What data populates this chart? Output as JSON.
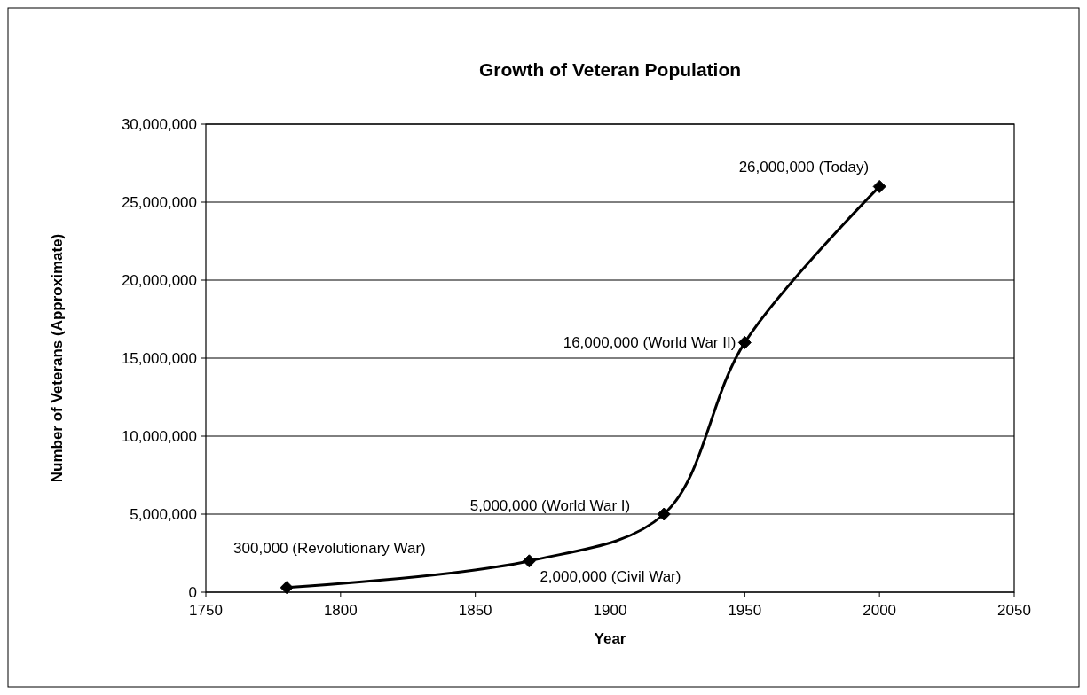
{
  "chart_data": {
    "type": "line",
    "title": "Growth of Veteran Population",
    "xlabel": "Year",
    "ylabel": "Number of Veterans (Approximate)",
    "x": [
      1780,
      1870,
      1920,
      1950,
      2000
    ],
    "series": [
      {
        "color": "#000000",
        "values": [
          300000,
          2000000,
          5000000,
          16000000,
          26000000
        ]
      }
    ],
    "xlim": [
      1750,
      2050
    ],
    "xticks": [
      1750,
      1800,
      1850,
      1900,
      1950,
      2000,
      2050
    ],
    "ylim": [
      0,
      30000000
    ],
    "yticks": [
      {
        "value": 0,
        "label": "0"
      },
      {
        "value": 5000000,
        "label": "5,000,000"
      },
      {
        "value": 10000000,
        "label": "10,000,000"
      },
      {
        "value": 15000000,
        "label": "15,000,000"
      },
      {
        "value": 20000000,
        "label": "20,000,000"
      },
      {
        "value": 25000000,
        "label": "25,000,000"
      },
      {
        "value": 30000000,
        "label": "30,000,000"
      }
    ],
    "grid": "y",
    "marker": "diamond",
    "line_style": "solid",
    "annotations": [
      {
        "text": "300,000 (Revolutionary War)",
        "x": 1780,
        "y": 300000
      },
      {
        "text": "2,000,000 (Civil War)",
        "x": 1870,
        "y": 2000000
      },
      {
        "text": "5,000,000 (World War I)",
        "x": 1920,
        "y": 5000000
      },
      {
        "text": "16,000,000 (World War II)",
        "x": 1950,
        "y": 16000000
      },
      {
        "text": "26,000,000 (Today)",
        "x": 2000,
        "y": 26000000
      }
    ]
  }
}
